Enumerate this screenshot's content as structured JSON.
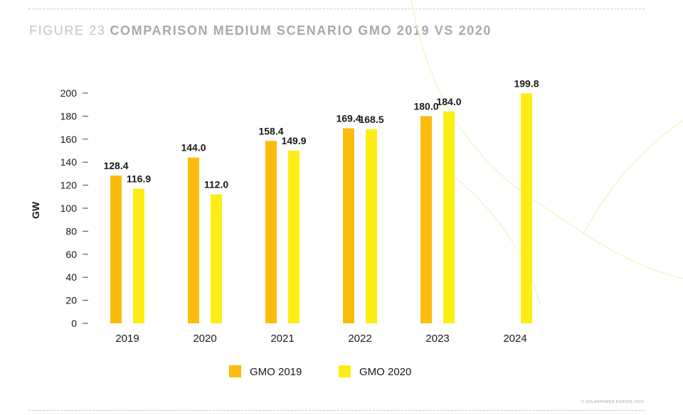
{
  "figure": {
    "number": "FIGURE 23",
    "title": "COMPARISON MEDIUM SCENARIO GMO 2019 VS 2020",
    "copyright": "© SOLARPOWER EUROPE 2020"
  },
  "colors": {
    "gmo2019": "#fbbc0e",
    "gmo2020": "#fcee14",
    "axis": "#444444",
    "text": "#1a1a1a"
  },
  "chart_data": {
    "type": "bar",
    "title": "COMPARISON MEDIUM SCENARIO GMO 2019 VS 2020",
    "xlabel": "",
    "ylabel": "GW",
    "ylim": [
      0,
      200
    ],
    "yticks": [
      0,
      20,
      40,
      60,
      80,
      100,
      120,
      140,
      160,
      180,
      200
    ],
    "categories": [
      "2019",
      "2020",
      "2021",
      "2022",
      "2023",
      "2024"
    ],
    "series": [
      {
        "name": "GMO 2019",
        "color": "#fbbc0e",
        "values": [
          128.4,
          144.0,
          158.4,
          169.4,
          180.0,
          null
        ],
        "labels": [
          "128.4",
          "144.0",
          "158.4",
          "169.4",
          "180.0",
          null
        ]
      },
      {
        "name": "GMO 2020",
        "color": "#fcee14",
        "values": [
          116.9,
          112.0,
          149.9,
          168.5,
          184.0,
          199.8
        ],
        "labels": [
          "116.9",
          "112.0",
          "149.9",
          "168.5",
          "184.0",
          "199.8"
        ]
      }
    ],
    "legend": "bottom-center",
    "grid": false
  }
}
